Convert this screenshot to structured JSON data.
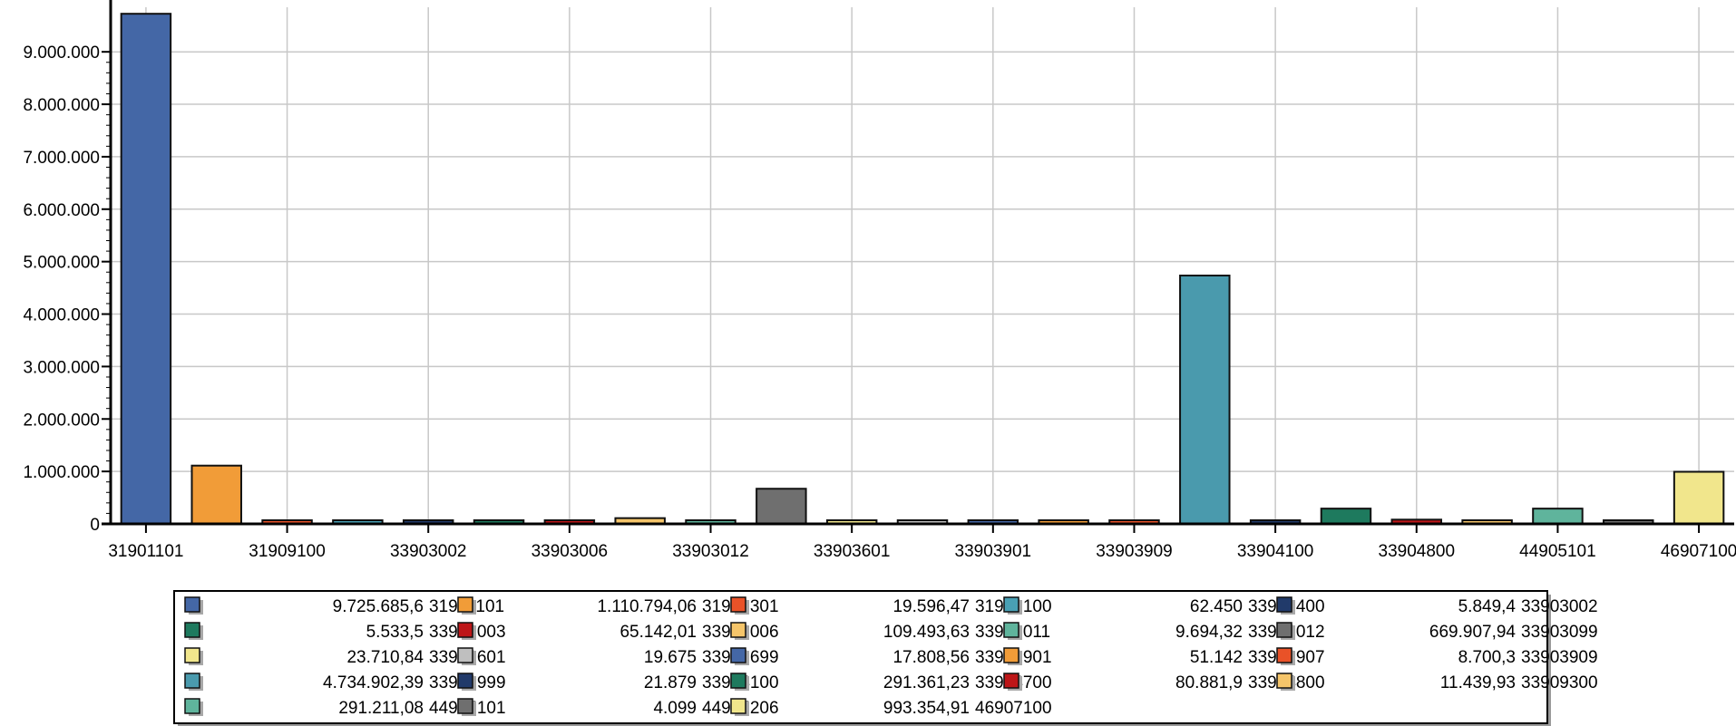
{
  "chart_data": {
    "type": "bar",
    "categories": [
      "31901101",
      "31901301",
      "31909100",
      "33901400",
      "33903002",
      "33903003",
      "33903006",
      "33903011",
      "33903012",
      "33903099",
      "33903601",
      "33903699",
      "33903901",
      "33903907",
      "33903909",
      "33903999",
      "33904100",
      "33904700",
      "33904800",
      "33909300",
      "44905101",
      "44905206",
      "46907100"
    ],
    "values": [
      9725685.6,
      1110794.06,
      19596.47,
      62450,
      5849.4,
      5533.5,
      65142.01,
      109493.63,
      9694.32,
      669907.94,
      23710.84,
      19675,
      17808.56,
      51142,
      8700.3,
      4734902.39,
      21879,
      291361.23,
      80881.9,
      11439.93,
      291211.08,
      4099,
      993354.91
    ],
    "colors": [
      "#4467a6",
      "#f19c38",
      "#e95228",
      "#49a0b4",
      "#213a6a",
      "#1e7a5e",
      "#bd1618",
      "#f5c56a",
      "#5fb49c",
      "#6f6f6f",
      "#f1e68c",
      "#bfbfbf",
      "#4467a6",
      "#f19c38",
      "#e95228",
      "#4a9aad",
      "#213a6a",
      "#1e7a5e",
      "#bd1618",
      "#f5c56a",
      "#5fb49c",
      "#6f6f6f",
      "#f1e68c"
    ],
    "x_tick_labels": [
      "31901101",
      "31909100",
      "33903002",
      "33903006",
      "33903012",
      "33903601",
      "33903901",
      "33903909",
      "33904100",
      "33904800",
      "44905101",
      "46907100"
    ],
    "y_ticks": [
      0,
      1000000,
      2000000,
      3000000,
      4000000,
      5000000,
      6000000,
      7000000,
      8000000,
      9000000
    ],
    "y_tick_labels": [
      "0",
      "1.000.000",
      "2.000.000",
      "3.000.000",
      "4.000.000",
      "5.000.000",
      "6.000.000",
      "7.000.000",
      "8.000.000",
      "9.000.000"
    ],
    "ylim": [
      0,
      9850000
    ],
    "grid": true,
    "legend_position": "bottom",
    "legend": [
      {
        "value": "9.725.685,6",
        "code": "31901101"
      },
      {
        "value": "1.110.794,06",
        "code": "31901301"
      },
      {
        "value": "19.596,47",
        "code": "31909100"
      },
      {
        "value": "62.450",
        "code": "33901400"
      },
      {
        "value": "5.849,4",
        "code": "33903002"
      },
      {
        "value": "5.533,5",
        "code": "33903003"
      },
      {
        "value": "65.142,01",
        "code": "33903006"
      },
      {
        "value": "109.493,63",
        "code": "33903011"
      },
      {
        "value": "9.694,32",
        "code": "33903012"
      },
      {
        "value": "669.907,94",
        "code": "33903099"
      },
      {
        "value": "23.710,84",
        "code": "33903601"
      },
      {
        "value": "19.675",
        "code": "33903699"
      },
      {
        "value": "17.808,56",
        "code": "33903901"
      },
      {
        "value": "51.142",
        "code": "33903907"
      },
      {
        "value": "8.700,3",
        "code": "33903909"
      },
      {
        "value": "4.734.902,39",
        "code": "33903999"
      },
      {
        "value": "21.879",
        "code": "33904100"
      },
      {
        "value": "291.361,23",
        "code": "33904700"
      },
      {
        "value": "80.881,9",
        "code": "33904800"
      },
      {
        "value": "11.439,93",
        "code": "33909300"
      },
      {
        "value": "291.211,08",
        "code": "44905101"
      },
      {
        "value": "4.099",
        "code": "44905206"
      },
      {
        "value": "993.354,91",
        "code": "46907100"
      }
    ]
  }
}
